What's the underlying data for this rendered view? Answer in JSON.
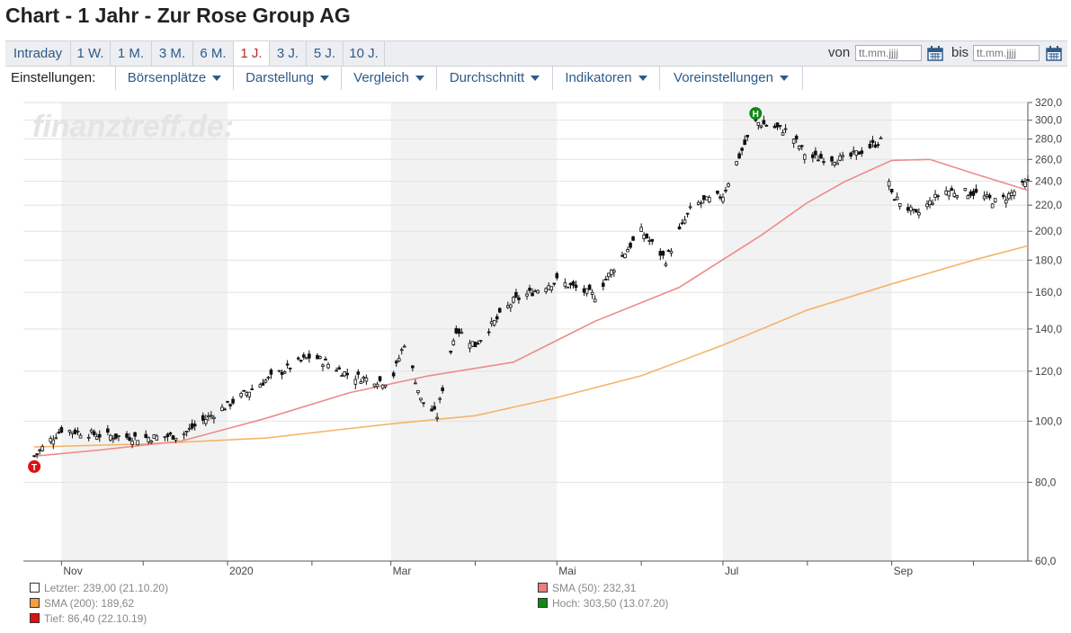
{
  "title": "Chart - 1 Jahr - Zur Rose Group AG",
  "range_tabs": [
    {
      "label": "Intraday"
    },
    {
      "label": "1 W."
    },
    {
      "label": "1 M."
    },
    {
      "label": "3 M."
    },
    {
      "label": "6 M."
    },
    {
      "label": "1 J.",
      "active": true
    },
    {
      "label": "3 J."
    },
    {
      "label": "5 J."
    },
    {
      "label": "10 J."
    }
  ],
  "date_filter": {
    "from_label": "von",
    "from_placeholder": "tt.mm.jjjj",
    "to_label": "bis",
    "to_placeholder": "tt.mm.jjjj"
  },
  "settings": {
    "label": "Einstellungen:",
    "menus": [
      "Börsenplätze",
      "Darstellung",
      "Vergleich",
      "Durchschnitt",
      "Indikatoren",
      "Voreinstellungen"
    ]
  },
  "watermark": "finanztreff.de:",
  "chart_data": {
    "type": "line",
    "style": "candlestick",
    "y_scale": "log",
    "ylim": [
      60,
      320
    ],
    "y_ticks": [
      "320,0",
      "300,0",
      "280,0",
      "260,0",
      "240,0",
      "220,0",
      "200,0",
      "180,0",
      "160,0",
      "140,0",
      "120,0",
      "100,0",
      "80,0",
      "60,0"
    ],
    "x_tick_labels": [
      "Nov",
      "2020",
      "Mar",
      "Mai",
      "Jul",
      "Sep"
    ],
    "grid": true,
    "series": [
      {
        "name": "Kurs",
        "x": [
          "2019-10-22",
          "2019-11-01",
          "2019-11-15",
          "2019-12-01",
          "2019-12-15",
          "2020-01-01",
          "2020-01-15",
          "2020-02-01",
          "2020-02-15",
          "2020-03-01",
          "2020-03-06",
          "2020-03-12",
          "2020-03-18",
          "2020-03-25",
          "2020-04-01",
          "2020-04-15",
          "2020-05-01",
          "2020-05-15",
          "2020-06-01",
          "2020-06-10",
          "2020-06-20",
          "2020-07-01",
          "2020-07-13",
          "2020-07-25",
          "2020-08-01",
          "2020-08-15",
          "2020-08-28",
          "2020-09-01",
          "2020-09-10",
          "2020-09-20",
          "2020-10-01",
          "2020-10-10",
          "2020-10-21"
        ],
        "values": [
          88,
          97,
          95,
          94,
          95,
          106,
          116,
          127,
          118,
          115,
          133,
          108,
          102,
          140,
          132,
          155,
          167,
          158,
          200,
          180,
          220,
          228,
          298,
          288,
          262,
          260,
          278,
          228,
          212,
          232,
          230,
          222,
          239
        ]
      },
      {
        "name": "SMA (50)",
        "x": [
          "2019-10-22",
          "2019-11-15",
          "2019-12-15",
          "2020-01-15",
          "2020-02-15",
          "2020-03-15",
          "2020-04-15",
          "2020-05-15",
          "2020-06-15",
          "2020-07-15",
          "2020-08-01",
          "2020-08-15",
          "2020-09-01",
          "2020-09-15",
          "2020-10-01",
          "2020-10-21"
        ],
        "values": [
          88,
          90,
          93,
          101,
          111,
          118,
          124,
          144,
          163,
          197,
          222,
          240,
          259,
          260,
          247,
          232.31
        ]
      },
      {
        "name": "SMA (200)",
        "x": [
          "2019-10-22",
          "2019-12-01",
          "2020-01-15",
          "2020-03-01",
          "2020-04-01",
          "2020-05-01",
          "2020-06-01",
          "2020-07-01",
          "2020-08-01",
          "2020-09-01",
          "2020-10-01",
          "2020-10-21"
        ],
        "values": [
          91,
          92,
          94,
          99,
          102,
          109,
          118,
          132,
          150,
          165,
          180,
          189.62
        ]
      }
    ],
    "markers": [
      {
        "label": "T",
        "x": "2019-10-22",
        "value": 86.4,
        "color": "#dd1111"
      },
      {
        "label": "H",
        "x": "2020-07-13",
        "value": 303.5,
        "color": "#118811"
      }
    ]
  },
  "legend": [
    {
      "text": "Letzter: 239,00 (21.10.20)",
      "color": "#ffffff"
    },
    {
      "text": "SMA (50): 232,31",
      "color": "#e88080"
    },
    {
      "text": "SMA (200): 189,62",
      "color": "#f0a040"
    },
    {
      "text": "Hoch: 303,50 (13.07.20)",
      "color": "#118811"
    },
    {
      "text": "Tief: 86,40 (22.10.19)",
      "color": "#dd1111"
    }
  ]
}
